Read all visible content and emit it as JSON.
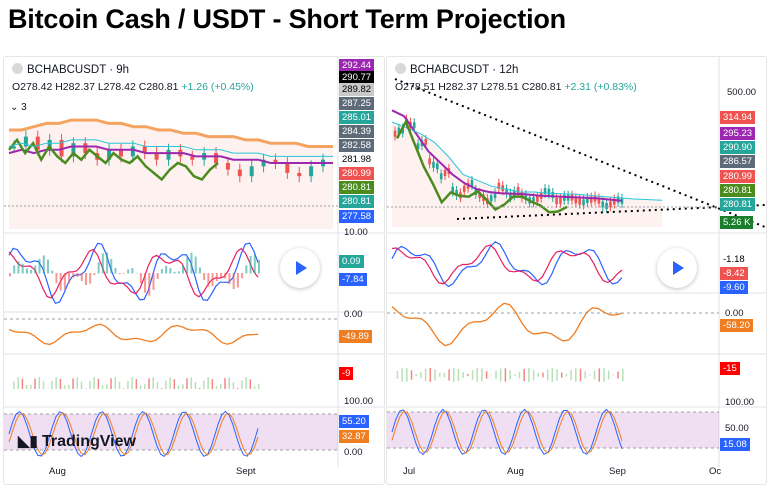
{
  "title": "Bitcoin Cash / USDT - Short Term Projection",
  "colors": {
    "up": "#26a69a",
    "down": "#ef5350",
    "purple": "#9c27b0",
    "green": "#4c8c1f",
    "orange": "#ef7d22",
    "blue": "#2962ff",
    "cyan": "#26c6da",
    "pink": "#e91e63"
  },
  "brand": "TradingView",
  "indicator_badge": "3",
  "left": {
    "symbol": "BCHABCUSDT · 9h",
    "ohlc": {
      "o": "O278.42",
      "h": "H282.37",
      "l": "L278.42",
      "c": "C280.81",
      "chg": "+1.26 (+0.45%)"
    },
    "price_tags": [
      {
        "text": "292.44",
        "bg": "#9c27b0"
      },
      {
        "text": "290.77",
        "bg": "#000000"
      },
      {
        "text": "289.82",
        "bg": "#c9c9c9",
        "fg": "#000"
      },
      {
        "text": "287.25",
        "bg": "#5d6a78"
      },
      {
        "text": "285.01",
        "bg": "#26a69a"
      },
      {
        "text": "284.39",
        "bg": "#5d6a78"
      },
      {
        "text": "282.58",
        "bg": "#5d6a78"
      },
      {
        "text": "281.98",
        "bg": "#ffffff",
        "fg": "#000"
      },
      {
        "text": "280.99",
        "bg": "#ef5350"
      },
      {
        "text": "280.81",
        "bg": "#4c8c1f"
      },
      {
        "text": "280.81",
        "bg": "#26a69a"
      },
      {
        "text": "277.58",
        "bg": "#2962ff"
      }
    ],
    "axis": {
      "osc_top": "10.00",
      "osc_zero": "0.00",
      "stoch_top": "100.00",
      "stoch_zero": "0.00"
    },
    "macd_tags": [
      {
        "text": "0.09",
        "bg": "#26a69a"
      },
      {
        "text": "-7.84",
        "bg": "#2962ff"
      }
    ],
    "mom_tag": {
      "text": "-49.89",
      "bg": "#ef7d22"
    },
    "hist_tag": {
      "text": "-9",
      "bg": "#ff0000"
    },
    "stoch_tags": [
      {
        "text": "55.20",
        "bg": "#2962ff"
      },
      {
        "text": "32.87",
        "bg": "#ef7d22"
      }
    ],
    "x_ticks": [
      "Aug",
      "Sept"
    ]
  },
  "right": {
    "symbol": "BCHABCUSDT · 12h",
    "ohlc": {
      "o": "O278.51",
      "h": "H282.37",
      "l": "L278.51",
      "c": "C280.81",
      "chg": "+2.31 (+0.83%)"
    },
    "axis": {
      "top": "500.00",
      "osc_zero": "0.00",
      "stoch_top": "100.00",
      "stoch_mid": "50.00"
    },
    "price_tags": [
      {
        "text": "314.94",
        "bg": "#ef5350"
      },
      {
        "text": "295.23",
        "bg": "#9c27b0"
      },
      {
        "text": "290.90",
        "bg": "#26a69a"
      },
      {
        "text": "286.57",
        "bg": "#5d6a78"
      },
      {
        "text": "280.99",
        "bg": "#ef5350"
      },
      {
        "text": "280.81",
        "bg": "#4c8c1f"
      },
      {
        "text": "280.81",
        "bg": "#26a69a"
      },
      {
        "text": "5.26 K",
        "bg": "#1b7e2d"
      }
    ],
    "macd_tags": [
      {
        "text": "-1.18",
        "bg": "#ffffff",
        "fg": "#000"
      },
      {
        "text": "-8.42",
        "bg": "#ef5350"
      },
      {
        "text": "-9.60",
        "bg": "#2962ff"
      }
    ],
    "mom_tag": {
      "text": "-58.20",
      "bg": "#ef7d22"
    },
    "hist_tag": {
      "text": "-15",
      "bg": "#ff0000"
    },
    "stoch_tags": [
      {
        "text": "15.08",
        "bg": "#2962ff"
      }
    ],
    "x_ticks": [
      "Jul",
      "Aug",
      "Sep",
      "Oc"
    ]
  },
  "chart_data": [
    {
      "type": "line",
      "title": "BCHABCUSDT · 9h",
      "x_ticks": [
        "Aug",
        "Sept"
      ],
      "last_close": 280.81,
      "series": [
        {
          "values": [
            285,
            288,
            284,
            287,
            282,
            286,
            283,
            281,
            284,
            282,
            285,
            283,
            281,
            284,
            282,
            281,
            283,
            280,
            278,
            276,
            279,
            281,
            280,
            277,
            276,
            279,
            281
          ]
        },
        {
          "values": [
            283,
            284,
            283,
            284,
            284,
            285,
            285,
            285,
            284,
            284,
            284,
            283,
            283,
            283,
            283,
            282,
            282,
            282,
            281,
            281,
            281,
            280,
            280,
            280,
            280,
            280,
            280
          ]
        },
        {
          "values": [
            290,
            290,
            291,
            292,
            292,
            293,
            293,
            293,
            292,
            292,
            291,
            291,
            290,
            290,
            289,
            289,
            288,
            288,
            288,
            287,
            287,
            286,
            286,
            286,
            285,
            285,
            285
          ]
        }
      ]
    },
    {
      "type": "line",
      "title": "BCHABCUSDT · 12h",
      "x_ticks": [
        "Jul",
        "Aug",
        "Sep",
        "Oc"
      ],
      "last_close": 280.81,
      "series": [
        {
          "values": [
            400,
            420,
            380,
            350,
            330,
            300,
            310,
            295,
            290,
            305,
            300,
            288,
            292,
            296,
            290,
            285,
            288,
            283,
            282,
            281
          ]
        },
        {
          "values": [
            440,
            430,
            400,
            370,
            350,
            330,
            315,
            305,
            300,
            298,
            297,
            296,
            294,
            293,
            292,
            291,
            290,
            289,
            287,
            285
          ]
        },
        {
          "values": [
            420,
            410,
            400,
            385,
            360,
            330,
            320,
            310,
            305,
            300,
            300,
            298,
            297,
            296,
            294,
            292,
            290,
            288,
            287,
            286
          ]
        }
      ]
    }
  ]
}
